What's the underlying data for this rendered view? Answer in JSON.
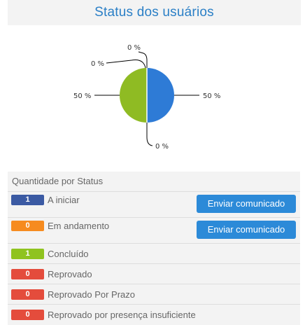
{
  "header": {
    "title": "Status dos usuários"
  },
  "chart_data": {
    "type": "pie",
    "categories": [
      "A iniciar",
      "Em andamento",
      "Concluído",
      "Reprovado",
      "Reprovado Por Prazo",
      "Reprovado por presença insuficiente"
    ],
    "values": [
      1,
      0,
      1,
      0,
      0,
      0
    ],
    "colors": [
      "#2e7bd6",
      "#2e7bd6",
      "#8fbb23",
      "#2e7bd6",
      "#2e7bd6",
      "#2e7bd6"
    ],
    "data_labels": [
      "50 %",
      "0 %",
      "50 %",
      "0 %",
      "0 %",
      "0 %"
    ],
    "visible_labels": {
      "right": "50 %",
      "left": "50 %",
      "top": "0 %",
      "upper_left": "0 %",
      "bottom": "0 %"
    }
  },
  "panel": {
    "title": "Quantidade por Status",
    "rows": [
      {
        "count": "1",
        "label": "A iniciar",
        "color": "#3b5aa3",
        "button": "Enviar comunicado"
      },
      {
        "count": "0",
        "label": "Em andamento",
        "color": "#f68b1f",
        "button": "Enviar comunicado"
      },
      {
        "count": "1",
        "label": "Concluído",
        "color": "#8fc31f",
        "button": ""
      },
      {
        "count": "0",
        "label": "Reprovado",
        "color": "#e44c3c",
        "button": ""
      },
      {
        "count": "0",
        "label": "Reprovado Por Prazo",
        "color": "#e44c3c",
        "button": ""
      },
      {
        "count": "0",
        "label": "Reprovado por presença insuficiente",
        "color": "#e44c3c",
        "button": ""
      }
    ]
  }
}
